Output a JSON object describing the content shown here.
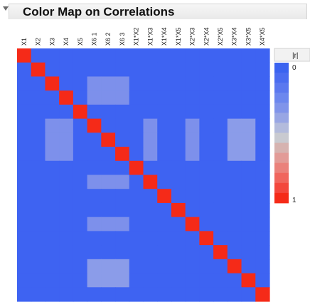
{
  "title": "Color Map on Correlations",
  "columns": [
    "X1",
    "X2",
    "X3",
    "X4",
    "X5",
    "X6 1",
    "X6 2",
    "X6 3",
    "X1*X2",
    "X1*X3",
    "X1*X4",
    "X1*X5",
    "X2*X3",
    "X2*X4",
    "X2*X5",
    "X3*X4",
    "X3*X5",
    "X4*X5"
  ],
  "legend": {
    "header": "|r|",
    "min_label": "0",
    "max_label": "1",
    "colors": [
      "#3a63f0",
      "#4a6cf0",
      "#5b78ef",
      "#6c87ee",
      "#8094ea",
      "#98a6e4",
      "#b3bbdc",
      "#c9cad0",
      "#d6b3b0",
      "#e29b97",
      "#ea817b",
      "#f0655d",
      "#f3473d",
      "#f52a18"
    ]
  },
  "colors": {
    "base": "#3e63f2",
    "diagonal": "#f52a18",
    "light": "#8b9ce9",
    "lighter": "#7d90eb"
  },
  "matrix_highlights": [
    {
      "rows": [
        5,
        6,
        7
      ],
      "cols": [
        2,
        3
      ],
      "level": "lighter"
    },
    {
      "rows": [
        5,
        6,
        7
      ],
      "cols": [
        9,
        12
      ],
      "level": "lighter"
    },
    {
      "rows": [
        5,
        6,
        7
      ],
      "cols": [
        15,
        16
      ],
      "level": "light"
    },
    {
      "rows": [
        2,
        3
      ],
      "cols": [
        5,
        6,
        7
      ],
      "level": "lighter"
    },
    {
      "rows": [
        9,
        12
      ],
      "cols": [
        5,
        6,
        7
      ],
      "level": "lighter"
    },
    {
      "rows": [
        15,
        16
      ],
      "cols": [
        5,
        6,
        7
      ],
      "level": "light"
    }
  ]
}
